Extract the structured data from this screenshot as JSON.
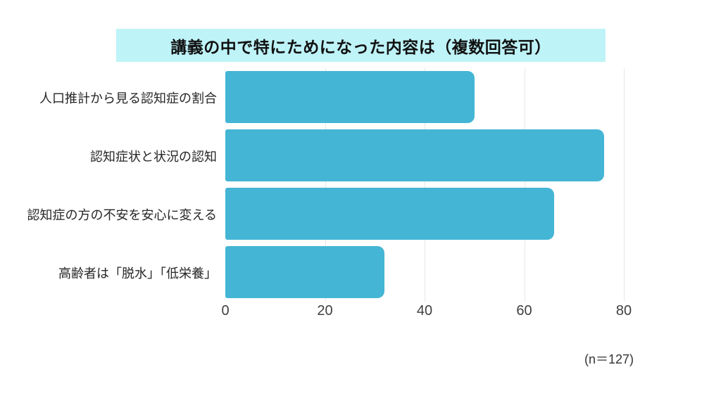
{
  "title": "講義の中で特にためになった内容は（複数回答可）",
  "note": "(n＝127)",
  "colors": {
    "bar": "#44B5D5",
    "title_background": "#BEF3F7",
    "gridline": "#E7E7E7"
  },
  "chart_data": {
    "type": "bar",
    "orientation": "horizontal",
    "title": "講義の中で特にためになった内容は（複数回答可）",
    "categories": [
      "人口推計から見る認知症の割合",
      "認知症状と状況の認知",
      "認知症の方の不安を安心に変える",
      "高齢者は「脱水」「低栄養」"
    ],
    "values": [
      50,
      76,
      66,
      32
    ],
    "xlabel": "",
    "ylabel": "",
    "xlim": [
      0,
      80
    ],
    "xticks": [
      0,
      20,
      40,
      60,
      80
    ],
    "grid": true,
    "legend": false,
    "annotation": "(n＝127)"
  }
}
